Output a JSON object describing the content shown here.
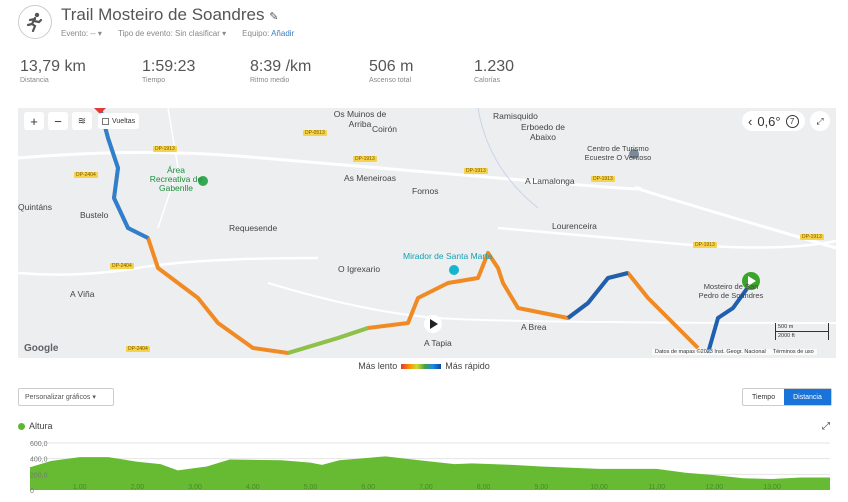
{
  "header": {
    "title": "Trail Mosteiro de Soandres",
    "event": "Evento: --",
    "event_type": "Tipo de evento: Sin clasificar",
    "gear_label": "Equipo:",
    "gear_link": "Añadir",
    "activity_icon": "running-person-icon"
  },
  "stats": [
    {
      "value": "13,79 km",
      "label": "Distancia"
    },
    {
      "value": "1:59:23",
      "label": "Tiempo"
    },
    {
      "value": "8:39 /km",
      "label": "Ritmo medio"
    },
    {
      "value": "506 m",
      "label": "Ascenso total"
    },
    {
      "value": "1.230",
      "label": "Calorías"
    }
  ],
  "map": {
    "laps_label": "Vueltas",
    "rotation": "0,6°",
    "zoom_level": "7",
    "places": [
      "Os Muinos de Arriba",
      "Ramisquido",
      "Coirón",
      "Erboedo de Abaixo",
      "Centro de Turismo Ecuestre O Ventoso",
      "Área Recreativa de Gabenlle",
      "As Meneiroas",
      "Fornos",
      "A Lamalonga",
      "Quintáns",
      "Bustelo",
      "Requesende",
      "Lourenceira",
      "O Igrexario",
      "Mirador de Santa Marta",
      "A Viña",
      "A Tapia",
      "A Brea",
      "Mosteiro de San Pedro de Soandres"
    ],
    "roads": [
      "DP-0513",
      "DP-1913",
      "DP-1913",
      "DP-1913",
      "DP-1913",
      "DP-1913",
      "DP-1913",
      "DP-2404",
      "DP-2404",
      "DP-2404"
    ],
    "scale": [
      "500 m",
      "2000 ft"
    ],
    "google": "Google",
    "attribution": "Datos de mapas ©2023 Inst. Geogr. Nacional",
    "terms": "Términos de uso"
  },
  "speed_legend": {
    "slow": "Más lento",
    "fast": "Más rápido"
  },
  "charts": {
    "customize": "Personalizar gráficos",
    "toggle_time": "Tiempo",
    "toggle_distance": "Distancia",
    "active": "Distancia"
  },
  "chart_data": {
    "type": "area",
    "series": [
      {
        "name": "Altura",
        "color": "#66bb33",
        "x": [
          0,
          0.5,
          1.0,
          1.5,
          2.0,
          2.4,
          2.7,
          3.2,
          3.6,
          4.5,
          5.0,
          5.2,
          5.5,
          6.0,
          6.3,
          7.0,
          7.5,
          7.8,
          8.5,
          9.0,
          10.0,
          11.0,
          11.5,
          12.0,
          12.5,
          13.0,
          13.5,
          14.0
        ],
        "y": [
          290,
          370,
          420,
          420,
          360,
          330,
          250,
          300,
          390,
          380,
          350,
          320,
          380,
          410,
          430,
          370,
          330,
          340,
          320,
          300,
          270,
          270,
          220,
          190,
          150,
          140,
          160,
          160
        ]
      }
    ],
    "yticks": [
      "600,0",
      "400,0",
      "200,0",
      "0"
    ],
    "xticks": [
      "1,00",
      "2,00",
      "3,00",
      "4,00",
      "5,00",
      "6,00",
      "7,00",
      "8,00",
      "9,00",
      "10,00",
      "11,00",
      "12,00",
      "13,00"
    ],
    "ylim": [
      0,
      600
    ],
    "xlim": [
      0,
      14
    ],
    "grid": true
  }
}
